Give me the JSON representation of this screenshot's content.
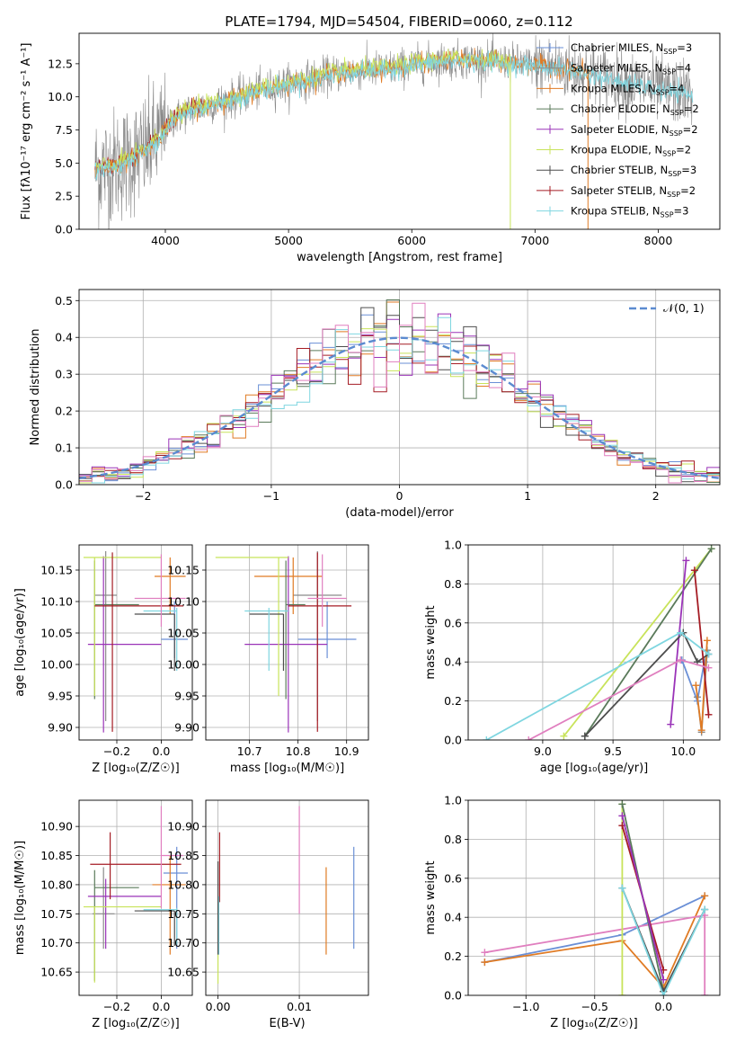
{
  "title": "PLATE=1794, MJD=54504, FIBERID=0060, z=0.112",
  "colors": {
    "Chabrier MILES": "#6a8fd6",
    "Salpeter MILES": "#8a8a8a",
    "Kroupa MILES": "#e07b24",
    "Chabrier ELODIE": "#5a7a5a",
    "Salpeter ELODIE": "#9a33b8",
    "Kroupa ELODIE": "#c8e35a",
    "Chabrier STELIB": "#4d4d4d",
    "Salpeter STELIB": "#a51c24",
    "Kroupa STELIB": "#7fd6e0",
    "Gaussian": "#5b8bd0",
    "Pink": "#e07fbf"
  },
  "chart_data": [
    {
      "type": "line",
      "name": "spectrum",
      "xlabel": "wavelength [Angstrom, rest frame]",
      "ylabel": "Flux [fλ10⁻¹⁷ erg cm⁻² s⁻¹ A⁻¹]",
      "xlim": [
        3300,
        8500
      ],
      "ylim": [
        0,
        14.8
      ],
      "xticks": [
        4000,
        5000,
        6000,
        7000,
        8000
      ],
      "yticks": [
        0.0,
        2.5,
        5.0,
        7.5,
        10.0,
        12.5
      ],
      "grid": false,
      "legend_position": "right",
      "legend": [
        {
          "label": "Chabrier MILES, N",
          "sub": "SSP",
          "suffix": "=3",
          "color": "Chabrier MILES"
        },
        {
          "label": "Salpeter MILES, N",
          "sub": "SSP",
          "suffix": "=4",
          "color": "Salpeter MILES"
        },
        {
          "label": "Kroupa MILES, N",
          "sub": "SSP",
          "suffix": "=4",
          "color": "Kroupa MILES"
        },
        {
          "label": "Chabrier ELODIE, N",
          "sub": "SSP",
          "suffix": "=2",
          "color": "Chabrier ELODIE"
        },
        {
          "label": "Salpeter ELODIE, N",
          "sub": "SSP",
          "suffix": "=2",
          "color": "Salpeter ELODIE"
        },
        {
          "label": "Kroupa ELODIE, N",
          "sub": "SSP",
          "suffix": "=2",
          "color": "Kroupa ELODIE"
        },
        {
          "label": "Chabrier STELIB, N",
          "sub": "SSP",
          "suffix": "=3",
          "color": "Chabrier STELIB"
        },
        {
          "label": "Salpeter STELIB, N",
          "sub": "SSP",
          "suffix": "=2",
          "color": "Salpeter STELIB"
        },
        {
          "label": "Kroupa STELIB, N",
          "sub": "SSP",
          "suffix": "=3",
          "color": "Kroupa STELIB"
        }
      ],
      "continuum": {
        "x": [
          3430,
          3550,
          3700,
          3850,
          3950,
          4050,
          4200,
          4400,
          4600,
          4800,
          5000,
          5200,
          5400,
          5600,
          5800,
          6000,
          6200,
          6400,
          6600,
          6800,
          7000,
          7200,
          7400,
          7600,
          7800,
          8000,
          8200,
          8280
        ],
        "y": [
          4.5,
          4.7,
          5.2,
          6.0,
          7.0,
          8.2,
          9.0,
          9.5,
          10.0,
          10.6,
          11.0,
          11.4,
          11.8,
          12.0,
          12.1,
          12.4,
          12.7,
          12.8,
          12.7,
          12.6,
          12.4,
          12.2,
          11.9,
          11.4,
          11.0,
          10.6,
          10.3,
          10.2
        ]
      }
    },
    {
      "type": "histogram",
      "name": "residuals",
      "xlabel": "(data-model)/error",
      "ylabel": "Normed distribution",
      "xlim": [
        -2.5,
        2.5
      ],
      "ylim": [
        0,
        0.53
      ],
      "xticks": [
        -2,
        -1,
        0,
        1,
        2
      ],
      "yticks": [
        0.0,
        0.1,
        0.2,
        0.3,
        0.4,
        0.5
      ],
      "grid": true,
      "bin_width": 0.1,
      "legend": [
        {
          "label": "𝒩(0, 1)",
          "color": "Gaussian"
        }
      ],
      "legend_position": "top-right"
    },
    {
      "type": "errorbar",
      "name": "age-vs-Z",
      "xlabel": "Z [log₁₀(Z/Z☉)]",
      "ylabel": "age  [log₁₀(age/yr)]",
      "xlim": [
        -0.37,
        0.14
      ],
      "ylim": [
        9.88,
        10.19
      ],
      "xticks": [
        -0.2,
        0.0
      ],
      "yticks": [
        9.9,
        9.95,
        10.0,
        10.05,
        10.1,
        10.15
      ],
      "grid": true,
      "points": [
        {
          "series": "Chabrier MILES",
          "x": 0.06,
          "y": 10.04,
          "xerr": [
            0.06,
            0.06
          ],
          "yerr": [
            0.03,
            0.06
          ]
        },
        {
          "series": "Salpeter MILES",
          "x": -0.25,
          "y": 10.11,
          "xerr": [
            0.05,
            0.05
          ],
          "yerr": [
            0.2,
            0.07
          ]
        },
        {
          "series": "Kroupa MILES",
          "x": 0.04,
          "y": 10.14,
          "xerr": [
            0.07,
            0.07
          ],
          "yerr": [
            0.06,
            0.03
          ]
        },
        {
          "series": "Chabrier ELODIE",
          "x": -0.3,
          "y": 10.095,
          "xerr": [
            0.0,
            0.2
          ],
          "yerr": [
            0.15,
            0.07
          ]
        },
        {
          "series": "Salpeter ELODIE",
          "x": -0.26,
          "y": 10.032,
          "xerr": [
            0.07,
            0.26
          ],
          "yerr": [
            0.14,
            0.14
          ]
        },
        {
          "series": "Kroupa ELODIE",
          "x": -0.3,
          "y": 10.17,
          "xerr": [
            0.05,
            0.3
          ],
          "yerr": [
            0.22,
            0.0
          ]
        },
        {
          "series": "Chabrier STELIB",
          "x": 0.06,
          "y": 10.08,
          "xerr": [
            0.18,
            0.0
          ],
          "yerr": [
            0.09,
            0.0
          ]
        },
        {
          "series": "Salpeter STELIB",
          "x": -0.22,
          "y": 10.093,
          "xerr": [
            0.08,
            0.32
          ],
          "yerr": [
            0.2,
            0.085
          ]
        },
        {
          "series": "Kroupa STELIB",
          "x": 0.07,
          "y": 10.085,
          "xerr": [
            0.15,
            0.0
          ],
          "yerr": [
            0.095,
            0.005
          ]
        },
        {
          "series": "Pink",
          "x": 0.0,
          "y": 10.105,
          "xerr": [
            0.12,
            0.11
          ],
          "yerr": [
            0.045,
            0.07
          ]
        }
      ]
    },
    {
      "type": "errorbar",
      "name": "age-vs-mass",
      "xlabel": "mass [log₁₀(M/M☉)]",
      "ylabel": "",
      "xlim": [
        10.61,
        10.945
      ],
      "ylim": [
        9.88,
        10.19
      ],
      "xticks": [
        10.7,
        10.8,
        10.9
      ],
      "yticks": [
        9.9,
        9.95,
        10.0,
        10.05,
        10.1,
        10.15
      ],
      "grid": true,
      "points": [
        {
          "series": "Chabrier MILES",
          "x": 10.86,
          "y": 10.04,
          "xerr": [
            0.06,
            0.06
          ],
          "yerr": [
            0.03,
            0.06
          ]
        },
        {
          "series": "Salpeter MILES",
          "x": 10.84,
          "y": 10.11,
          "xerr": [
            0.05,
            0.05
          ],
          "yerr": [
            0.2,
            0.07
          ]
        },
        {
          "series": "Kroupa MILES",
          "x": 10.79,
          "y": 10.14,
          "xerr": [
            0.08,
            0.06
          ],
          "yerr": [
            0.06,
            0.03
          ]
        },
        {
          "series": "Chabrier ELODIE",
          "x": 10.775,
          "y": 10.095,
          "xerr": [
            0.0,
            0.04
          ],
          "yerr": [
            0.15,
            0.07
          ]
        },
        {
          "series": "Salpeter ELODIE",
          "x": 10.78,
          "y": 10.032,
          "xerr": [
            0.09,
            0.08
          ],
          "yerr": [
            0.14,
            0.14
          ]
        },
        {
          "series": "Kroupa ELODIE",
          "x": 10.76,
          "y": 10.17,
          "xerr": [
            0.13,
            0.02
          ],
          "yerr": [
            0.22,
            0.0
          ]
        },
        {
          "series": "Chabrier STELIB",
          "x": 10.77,
          "y": 10.08,
          "xerr": [
            0.07,
            0.0
          ],
          "yerr": [
            0.09,
            0.0
          ]
        },
        {
          "series": "Salpeter STELIB",
          "x": 10.84,
          "y": 10.093,
          "xerr": [
            0.06,
            0.07
          ],
          "yerr": [
            0.2,
            0.085
          ]
        },
        {
          "series": "Kroupa STELIB",
          "x": 10.74,
          "y": 10.085,
          "xerr": [
            0.05,
            0.04
          ],
          "yerr": [
            0.095,
            0.005
          ]
        },
        {
          "series": "Pink",
          "x": 10.85,
          "y": 10.105,
          "xerr": [
            0.03,
            0.05
          ],
          "yerr": [
            0.045,
            0.07
          ]
        }
      ]
    },
    {
      "type": "line",
      "name": "mass-weight-vs-age",
      "xlabel": "age  [log₁₀(age/yr)]",
      "ylabel": "mass weight",
      "xlim": [
        8.47,
        10.26
      ],
      "ylim": [
        0,
        1
      ],
      "xticks": [
        9.0,
        9.5,
        10.0
      ],
      "yticks": [
        0.0,
        0.2,
        0.4,
        0.6,
        0.8,
        1.0
      ],
      "grid": true,
      "series": [
        {
          "series": "Kroupa ELODIE",
          "x": [
            9.15,
            10.2
          ],
          "y": [
            0.02,
            0.98
          ]
        },
        {
          "series": "Chabrier ELODIE",
          "x": [
            9.3,
            10.2
          ],
          "y": [
            0.02,
            0.98
          ]
        },
        {
          "series": "Chabrier MILES",
          "x": [
            9.99,
            10.1,
            10.15
          ],
          "y": [
            0.41,
            0.2,
            0.4
          ]
        },
        {
          "series": "Salpeter MILES",
          "x": [
            10.1,
            10.13,
            10.17
          ],
          "y": [
            0.22,
            0.04,
            0.46
          ]
        },
        {
          "series": "Kroupa MILES",
          "x": [
            10.09,
            10.13,
            10.17
          ],
          "y": [
            0.28,
            0.05,
            0.51
          ]
        },
        {
          "series": "Salpeter ELODIE",
          "x": [
            9.91,
            10.02
          ],
          "y": [
            0.08,
            0.92
          ]
        },
        {
          "series": "Chabrier STELIB",
          "x": [
            9.3,
            10.0,
            10.1,
            10.18
          ],
          "y": [
            0.02,
            0.55,
            0.4,
            0.44
          ]
        },
        {
          "series": "Salpeter STELIB",
          "x": [
            10.08,
            10.18
          ],
          "y": [
            0.87,
            0.13
          ]
        },
        {
          "series": "Kroupa STELIB",
          "x": [
            8.6,
            9.98,
            10.18
          ],
          "y": [
            0.0,
            0.55,
            0.44
          ]
        },
        {
          "series": "Pink",
          "x": [
            8.9,
            9.98,
            10.18
          ],
          "y": [
            0.0,
            0.41,
            0.37
          ]
        }
      ]
    },
    {
      "type": "errorbar",
      "name": "mass-vs-Z",
      "xlabel": "Z [log₁₀(Z/Z☉)]",
      "ylabel": "mass [log₁₀(M/M☉)]",
      "xlim": [
        -0.37,
        0.14
      ],
      "ylim": [
        10.61,
        10.945
      ],
      "xticks": [
        -0.2,
        0.0
      ],
      "yticks": [
        10.65,
        10.7,
        10.75,
        10.8,
        10.85,
        10.9
      ],
      "grid": true,
      "points": [
        {
          "series": "Chabrier MILES",
          "x": 0.07,
          "y": 10.82,
          "xerr": [
            0.06,
            0.05
          ],
          "yerr": [
            0.13,
            0.045
          ]
        },
        {
          "series": "Salpeter MILES",
          "x": -0.26,
          "y": 10.75,
          "xerr": [
            0.05,
            0.05
          ],
          "yerr": [
            0.06,
            0.08
          ]
        },
        {
          "series": "Kroupa MILES",
          "x": 0.04,
          "y": 10.8,
          "xerr": [
            0.08,
            0.07
          ],
          "yerr": [
            0.12,
            0.05
          ]
        },
        {
          "series": "Chabrier ELODIE",
          "x": -0.3,
          "y": 10.795,
          "xerr": [
            0.0,
            0.2
          ],
          "yerr": [
            0.16,
            0.03
          ]
        },
        {
          "series": "Salpeter ELODIE",
          "x": -0.25,
          "y": 10.78,
          "xerr": [
            0.08,
            0.25
          ],
          "yerr": [
            0.09,
            0.03
          ]
        },
        {
          "series": "Kroupa ELODIE",
          "x": -0.3,
          "y": 10.762,
          "xerr": [
            0.05,
            0.3
          ],
          "yerr": [
            0.13,
            0.0
          ]
        },
        {
          "series": "Chabrier STELIB",
          "x": 0.06,
          "y": 10.755,
          "xerr": [
            0.18,
            0.0
          ],
          "yerr": [
            0.06,
            0.0
          ]
        },
        {
          "series": "Salpeter STELIB",
          "x": -0.23,
          "y": 10.835,
          "xerr": [
            0.09,
            0.32
          ],
          "yerr": [
            0.06,
            0.055
          ]
        },
        {
          "series": "Kroupa STELIB",
          "x": 0.07,
          "y": 10.757,
          "xerr": [
            0.15,
            0.0
          ],
          "yerr": [
            0.06,
            0.003
          ]
        },
        {
          "series": "Pink",
          "x": 0.0,
          "y": 10.85,
          "xerr": [
            0.0,
            0.1
          ],
          "yerr": [
            0.09,
            0.085
          ]
        }
      ]
    },
    {
      "type": "errorbar",
      "name": "mass-vs-ebv",
      "xlabel": "E(B-V)",
      "ylabel": "",
      "xlim": [
        -0.0015,
        0.0185
      ],
      "ylim": [
        10.61,
        10.945
      ],
      "xticks": [
        0.0,
        0.01
      ],
      "xtick_labels": [
        "0.00",
        "0.01"
      ],
      "yticks": [
        10.65,
        10.7,
        10.75,
        10.8,
        10.85,
        10.9
      ],
      "grid": true,
      "points": [
        {
          "series": "Chabrier MILES",
          "x": 0.0167,
          "y": 10.78,
          "yerr": [
            0.09,
            0.085
          ]
        },
        {
          "series": "Kroupa MILES",
          "x": 0.0133,
          "y": 10.755,
          "yerr": [
            0.075,
            0.075
          ]
        },
        {
          "series": "Pink",
          "x": 0.01,
          "y": 10.84,
          "yerr": [
            0.09,
            0.095
          ]
        },
        {
          "series": "Salpeter STELIB",
          "x": 0.0002,
          "y": 10.83,
          "yerr": [
            0.06,
            0.06
          ]
        },
        {
          "series": "Kroupa ELODIE",
          "x": 0.0,
          "y": 10.7,
          "yerr": [
            0.07,
            0.07
          ]
        },
        {
          "series": "Kroupa STELIB",
          "x": 0.0001,
          "y": 10.73,
          "yerr": [
            0.05,
            0.05
          ]
        },
        {
          "series": "Chabrier STELIB",
          "x": 0.0,
          "y": 10.76,
          "yerr": [
            0.08,
            0.08
          ]
        }
      ]
    },
    {
      "type": "line",
      "name": "mass-weight-vs-Z",
      "xlabel": "Z [log₁₀(Z/Z☉)]",
      "ylabel": "mass weight",
      "xlim": [
        -1.42,
        0.41
      ],
      "ylim": [
        0,
        1
      ],
      "xticks": [
        -1.0,
        -0.5,
        0.0
      ],
      "yticks": [
        0.0,
        0.2,
        0.4,
        0.6,
        0.8,
        1.0
      ],
      "grid": true,
      "series": [
        {
          "series": "Chabrier MILES",
          "x": [
            -1.3,
            -0.3,
            0.3
          ],
          "y": [
            0.17,
            0.31,
            0.51
          ]
        },
        {
          "series": "Kroupa MILES",
          "x": [
            -1.3,
            -0.3,
            0.0,
            0.3
          ],
          "y": [
            0.17,
            0.28,
            0.04,
            0.51
          ]
        },
        {
          "series": "Pink",
          "x": [
            -1.3,
            0.3,
            0.3
          ],
          "y": [
            0.22,
            0.41,
            0.0
          ]
        },
        {
          "series": "Kroupa ELODIE",
          "x": [
            -0.3,
            -0.3
          ],
          "y": [
            0.0,
            0.98
          ]
        },
        {
          "series": "Chabrier ELODIE",
          "x": [
            -0.3,
            0.0
          ],
          "y": [
            0.98,
            0.02
          ]
        },
        {
          "series": "Salpeter STELIB",
          "x": [
            -0.3,
            0.0
          ],
          "y": [
            0.87,
            0.13
          ]
        },
        {
          "series": "Salpeter ELODIE",
          "x": [
            -0.3,
            0.0
          ],
          "y": [
            0.92,
            0.08
          ]
        },
        {
          "series": "Chabrier STELIB",
          "x": [
            -0.3,
            0.0,
            0.3
          ],
          "y": [
            0.55,
            0.02,
            0.44
          ]
        },
        {
          "series": "Kroupa STELIB",
          "x": [
            -0.3,
            0.0,
            0.3
          ],
          "y": [
            0.55,
            0.0,
            0.44
          ]
        }
      ]
    }
  ]
}
